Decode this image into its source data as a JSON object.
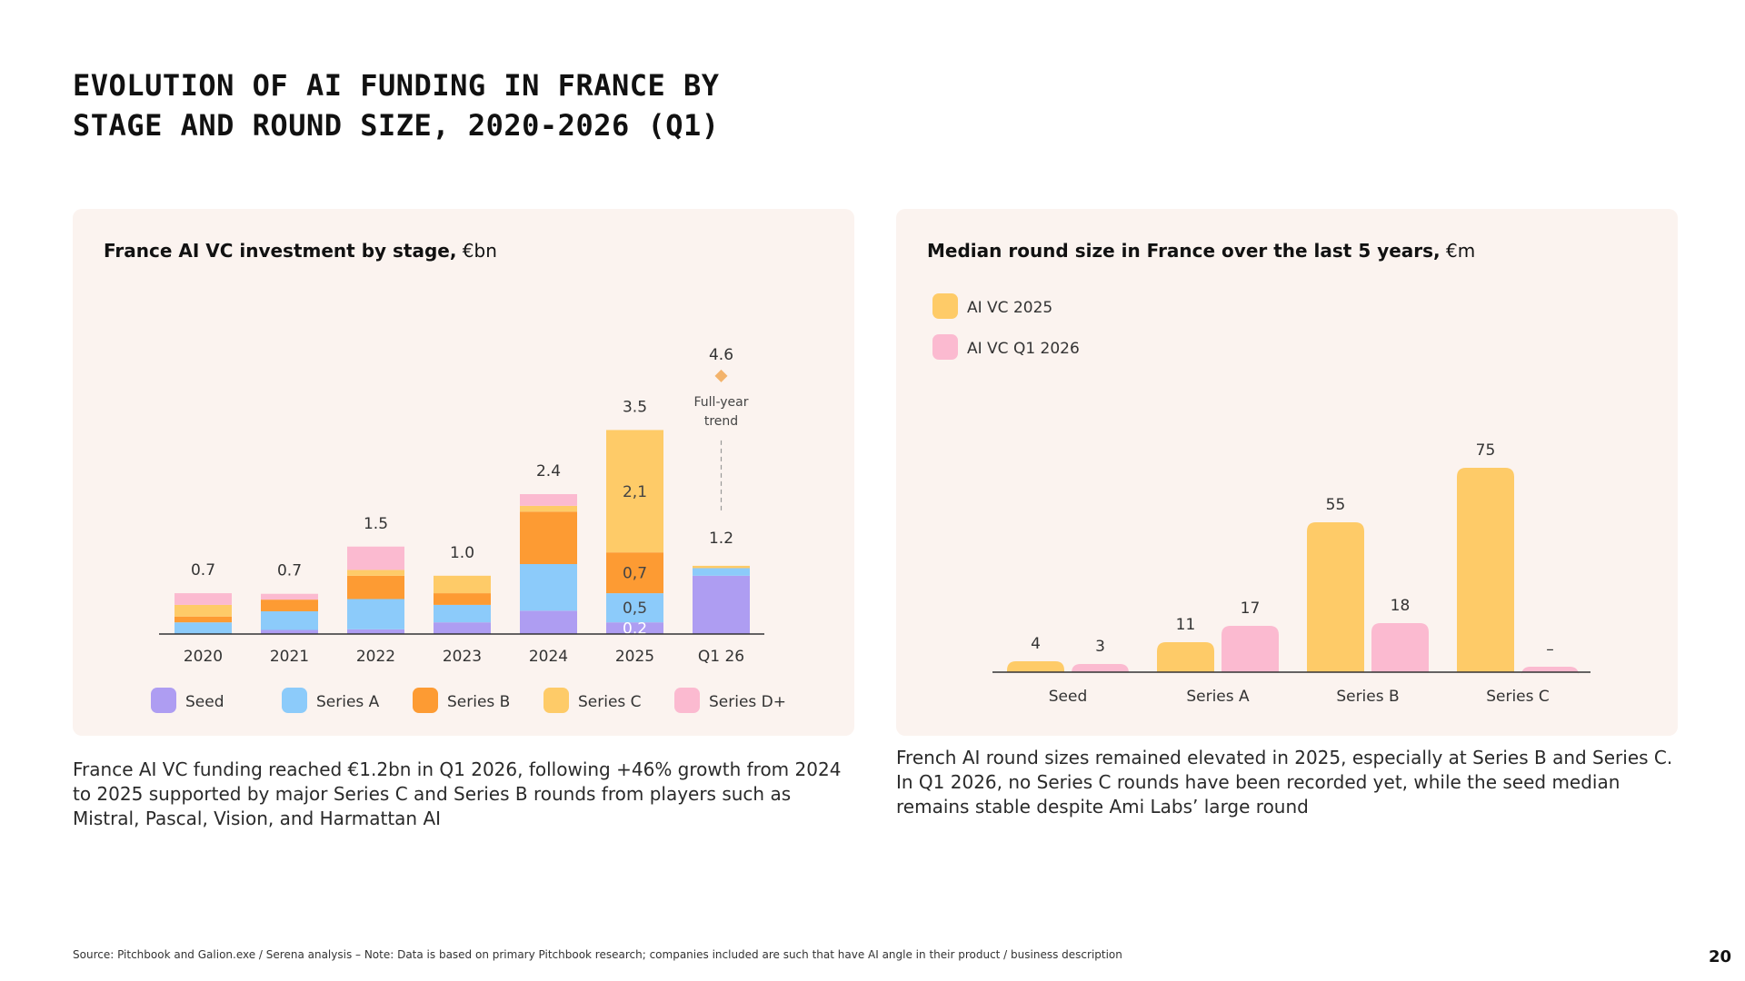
{
  "title": {
    "line1": "EVOLUTION OF AI FUNDING IN FRANCE BY",
    "line2": "STAGE AND ROUND SIZE, 2020-2026 (Q1)"
  },
  "chart_data": [
    {
      "type": "bar",
      "stacked": true,
      "title_bold": "France AI VC investment by stage,",
      "title_unit": " €bn",
      "categories": [
        "2020",
        "2021",
        "2022",
        "2023",
        "2024",
        "2025",
        "Q1 26"
      ],
      "totals": [
        "0.7",
        "0.7",
        "1.5",
        "1.0",
        "2.4",
        "3.5",
        "1.2"
      ],
      "series": [
        {
          "name": "Seed",
          "color": "#ae9df2",
          "values": [
            0.0,
            0.07,
            0.08,
            0.2,
            0.4,
            0.2,
            1.0
          ]
        },
        {
          "name": "Series A",
          "color": "#8ccbfa",
          "values": [
            0.2,
            0.32,
            0.52,
            0.3,
            0.8,
            0.5,
            0.13
          ]
        },
        {
          "name": "Series B",
          "color": "#fd9b33",
          "values": [
            0.1,
            0.2,
            0.4,
            0.2,
            0.9,
            0.7,
            0.0
          ]
        },
        {
          "name": "Series C",
          "color": "#fecb68",
          "values": [
            0.2,
            0.0,
            0.1,
            0.3,
            0.1,
            2.1,
            0.04
          ]
        },
        {
          "name": "Series D+",
          "color": "#fbbad0",
          "values": [
            0.2,
            0.1,
            0.4,
            0.0,
            0.2,
            0.0,
            0.0
          ]
        }
      ],
      "segment_labels": [
        {
          "category": "2025",
          "series": "Seed",
          "text": "0,2"
        },
        {
          "category": "2025",
          "series": "Series A",
          "text": "0,5"
        },
        {
          "category": "2025",
          "series": "Series B",
          "text": "0,7"
        },
        {
          "category": "2025",
          "series": "Series C",
          "text": "2,1"
        }
      ],
      "trend": {
        "category": "Q1 26",
        "value": 4.6,
        "value_label": "4.6",
        "label_line1": "Full-year",
        "label_line2": "trend",
        "color": "#f3b36b"
      },
      "ylim": [
        0,
        4.8
      ]
    },
    {
      "type": "bar",
      "grouped": true,
      "title_bold": "Median round size in France over the last 5 years,",
      "title_unit": " €m",
      "categories": [
        "Seed",
        "Series A",
        "Series B",
        "Series C"
      ],
      "series": [
        {
          "name": "AI VC 2025",
          "color": "#fecb68",
          "values": [
            4,
            11,
            55,
            75
          ],
          "labels": [
            "4",
            "11",
            "55",
            "75"
          ]
        },
        {
          "name": "AI VC Q1 2026",
          "color": "#fbbad0",
          "values": [
            3,
            17,
            18,
            0
          ],
          "labels": [
            "3",
            "17",
            "18",
            "–"
          ]
        }
      ],
      "ylim": [
        0,
        80
      ]
    }
  ],
  "captions": {
    "left": "France AI VC funding reached €1.2bn in Q1 2026, following +46% growth from 2024 to 2025 supported by major Series C and Series B rounds from players such as Mistral, Pascal, Vision, and Harmattan AI",
    "right": "French AI round sizes remained elevated in 2025, especially at Series B and Series C. In Q1 2026, no Series C rounds have been recorded yet, while the seed median remains stable despite Ami Labs’ large round"
  },
  "footer": "Source: Pitchbook and Galion.exe / Serena analysis – Note:  Data is based on primary Pitchbook research; companies included are such that have AI angle in their product / business description",
  "page_number": "20",
  "colors": {
    "panel_bg": "#fbf3ef",
    "axis": "#333333",
    "text": "#1a1a1a"
  }
}
